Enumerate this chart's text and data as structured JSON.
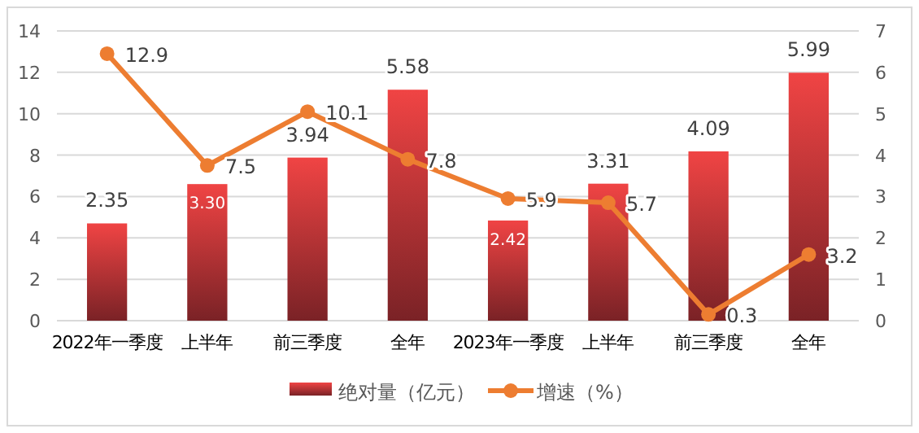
{
  "chart_data": {
    "type": "bar",
    "categories": [
      "2022年一季度",
      "上半年",
      "前三季度",
      "全年",
      "2023年一季度",
      "上半年",
      "前三季度",
      "全年"
    ],
    "series": [
      {
        "name": "绝对量（亿元）",
        "axis": "y2",
        "color": "#f04444",
        "values": [
          2.35,
          3.3,
          3.94,
          5.58,
          2.42,
          3.31,
          4.09,
          5.99
        ],
        "value_labels": [
          "2.35",
          "3.30",
          "3.94",
          "5.58",
          "2.42",
          "3.31",
          "4.09",
          "5.99"
        ]
      },
      {
        "name": "增速（%）",
        "type": "line",
        "color": "#ed7d31",
        "marker": "circle",
        "values": [
          12.9,
          7.5,
          10.1,
          7.8,
          5.9,
          5.7,
          0.3,
          3.2
        ],
        "value_labels": [
          "12.9",
          "7.5",
          "10.1",
          "7.8",
          "5.9",
          "5.7",
          "0.3",
          "3.2"
        ]
      }
    ],
    "ylim": [
      0,
      14
    ],
    "yticks": [
      0,
      2,
      4,
      6,
      8,
      10,
      12,
      14
    ],
    "y2lim": [
      0,
      7
    ],
    "y2ticks": [
      0,
      1,
      2,
      3,
      4,
      5,
      6,
      7
    ],
    "grid": "y",
    "legend": "bottom"
  }
}
